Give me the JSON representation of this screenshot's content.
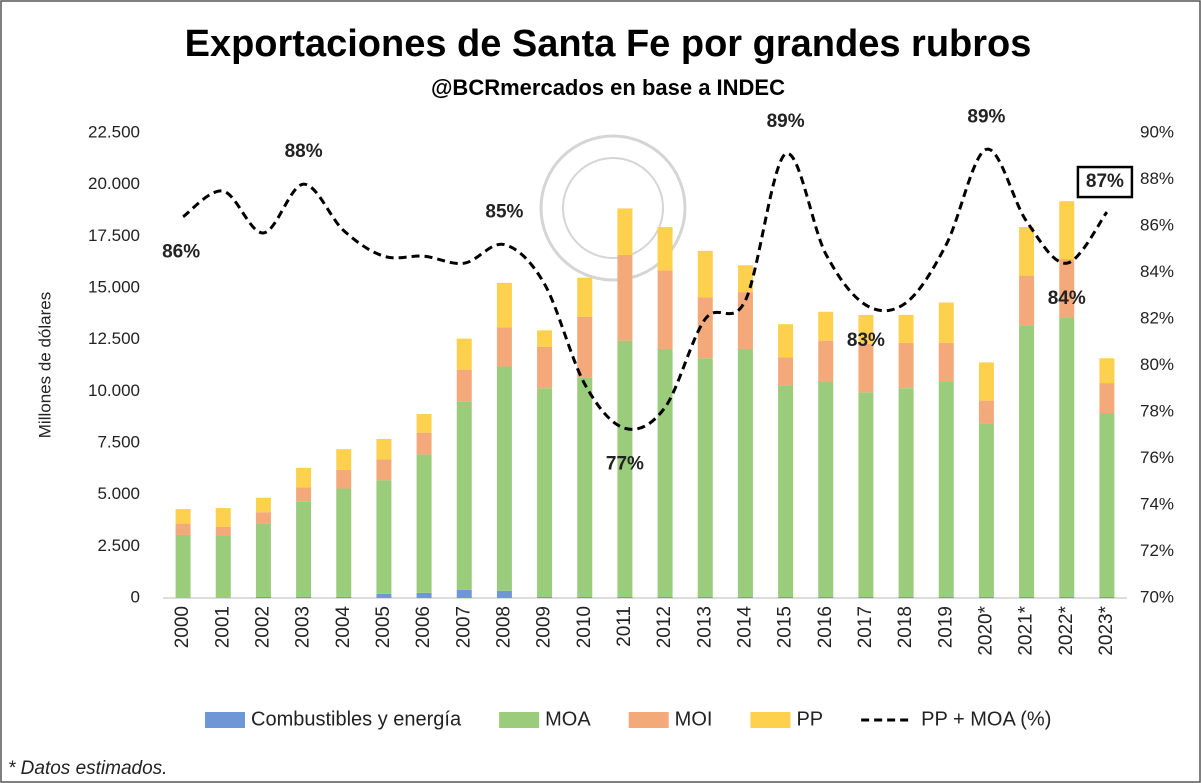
{
  "chart_data": {
    "type": "bar",
    "stacked": true,
    "title": "Exportaciones de Santa Fe por grandes rubros",
    "subtitle": "@BCRmercados en base a INDEC",
    "y_label": "Millones de dólares",
    "footnote": "* Datos estimados.",
    "categories": [
      "2000",
      "2001",
      "2002",
      "2003",
      "2004",
      "2005",
      "2006",
      "2007",
      "2008",
      "2009",
      "2010",
      "2011",
      "2012",
      "2013",
      "2014",
      "2015",
      "2016",
      "2017",
      "2018",
      "2019",
      "2020*",
      "2021*",
      "2022*",
      "2023*"
    ],
    "series": [
      {
        "name": "Combustibles y energía",
        "color": "#6f97d8",
        "values": [
          0,
          0,
          50,
          50,
          50,
          200,
          250,
          400,
          350,
          50,
          50,
          50,
          50,
          50,
          50,
          50,
          50,
          50,
          50,
          50,
          50,
          50,
          50,
          50
        ]
      },
      {
        "name": "MOA",
        "color": "#9bcc7c",
        "values": [
          3050,
          3000,
          3550,
          4600,
          5250,
          5500,
          6700,
          9100,
          10850,
          10100,
          10600,
          12400,
          12000,
          11550,
          12000,
          10250,
          10400,
          9900,
          10100,
          10400,
          8400,
          13150,
          13500,
          8900
        ]
      },
      {
        "name": "MOI",
        "color": "#f3a97a",
        "values": [
          550,
          450,
          550,
          700,
          900,
          1000,
          1050,
          1550,
          1900,
          2000,
          2950,
          4150,
          3800,
          2950,
          2750,
          1350,
          2000,
          2350,
          2200,
          1900,
          1100,
          2400,
          2850,
          1450
        ]
      },
      {
        "name": "PP",
        "color": "#fdd04d",
        "values": [
          700,
          900,
          700,
          950,
          1000,
          1000,
          900,
          1500,
          2150,
          800,
          1900,
          2250,
          2100,
          2250,
          1300,
          1600,
          1400,
          1400,
          1350,
          1950,
          1850,
          2350,
          2800,
          1200
        ]
      },
      {
        "name": "PP + MOA (%)",
        "type": "line",
        "axis": "y2",
        "color": "#000000",
        "dashed": true,
        "values": [
          86.4,
          87.5,
          85.7,
          87.8,
          85.8,
          84.7,
          84.7,
          84.4,
          85.2,
          83.5,
          79.2,
          77.3,
          78.2,
          82.0,
          82.8,
          89.1,
          84.8,
          82.6,
          82.7,
          85.2,
          89.3,
          86.2,
          84.4,
          86.6
        ],
        "value_labels": [
          "86%",
          null,
          null,
          "88%",
          null,
          null,
          null,
          null,
          "85%",
          null,
          null,
          "77%",
          null,
          null,
          null,
          "89%",
          null,
          "83%",
          null,
          null,
          "89%",
          null,
          "84%",
          "87%"
        ]
      }
    ],
    "ylim": [
      0,
      22500
    ],
    "yticks": [
      0,
      {
        "value": 2500,
        "label": "2.500"
      },
      {
        "value": 5000,
        "label": "5.000"
      },
      {
        "value": 7500,
        "label": "7.500"
      },
      {
        "value": 10000,
        "label": "10.000"
      },
      {
        "value": 12500,
        "label": "12.500"
      },
      {
        "value": 15000,
        "label": "15.000"
      },
      {
        "value": 17500,
        "label": "17.500"
      },
      {
        "value": 20000,
        "label": "20.000"
      },
      {
        "value": 22500,
        "label": "22.500"
      }
    ],
    "y2lim": [
      70,
      90
    ],
    "y2ticks": [
      {
        "value": 70,
        "label": "70%"
      },
      {
        "value": 72,
        "label": "72%"
      },
      {
        "value": 74,
        "label": "74%"
      },
      {
        "value": 76,
        "label": "76%"
      },
      {
        "value": 78,
        "label": "78%"
      },
      {
        "value": 80,
        "label": "80%"
      },
      {
        "value": 82,
        "label": "82%"
      },
      {
        "value": 84,
        "label": "84%"
      },
      {
        "value": 86,
        "label": "86%"
      },
      {
        "value": 88,
        "label": "88%"
      },
      {
        "value": 90,
        "label": "90%"
      }
    ],
    "legend": "bottom"
  }
}
